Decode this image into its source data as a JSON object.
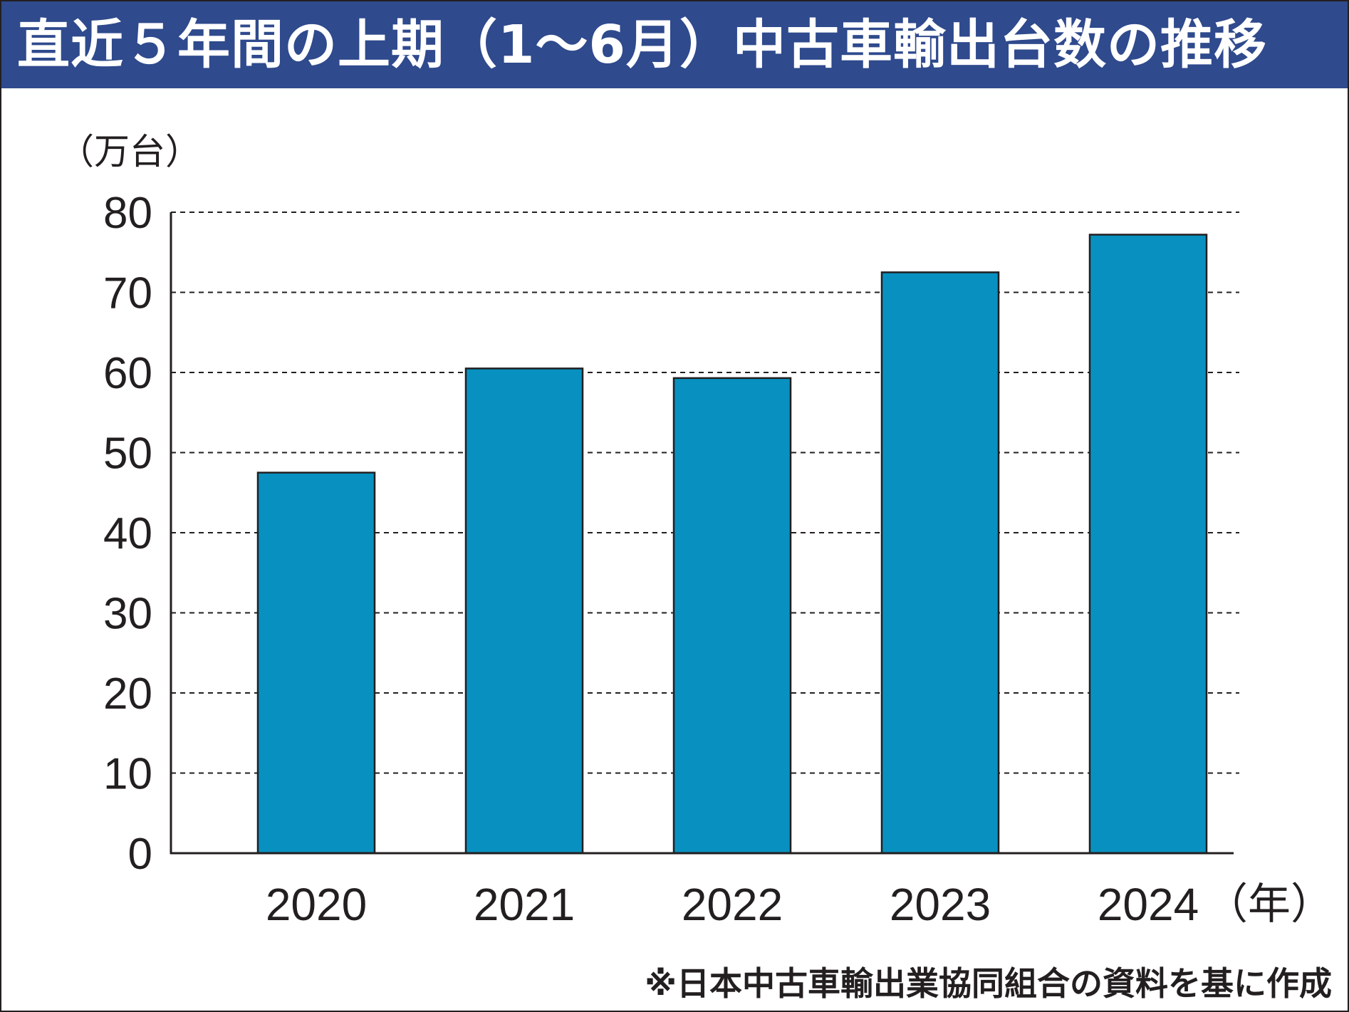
{
  "title": "直近５年間の上期（1～6月）中古車輸出台数の推移",
  "source_note": "※日本中古車輸出業協同組合の資料を基に作成",
  "colors": {
    "title_bg": "#2f4a8d",
    "bar": "#0891c0",
    "ink": "#231f20"
  },
  "chart_data": {
    "type": "bar",
    "title": "直近５年間の上期（1～6月）中古車輸出台数の推移",
    "ylabel": "（万台）",
    "xlabel": "（年）",
    "categories": [
      "2020",
      "2021",
      "2022",
      "2023",
      "2024"
    ],
    "values": [
      47.5,
      60.5,
      59.3,
      72.5,
      77.2
    ],
    "ylim": [
      0,
      80
    ],
    "yticks": [
      "0",
      "10",
      "20",
      "30",
      "40",
      "50",
      "60",
      "70",
      "80"
    ],
    "grid": true,
    "grid_style": "dashed"
  }
}
